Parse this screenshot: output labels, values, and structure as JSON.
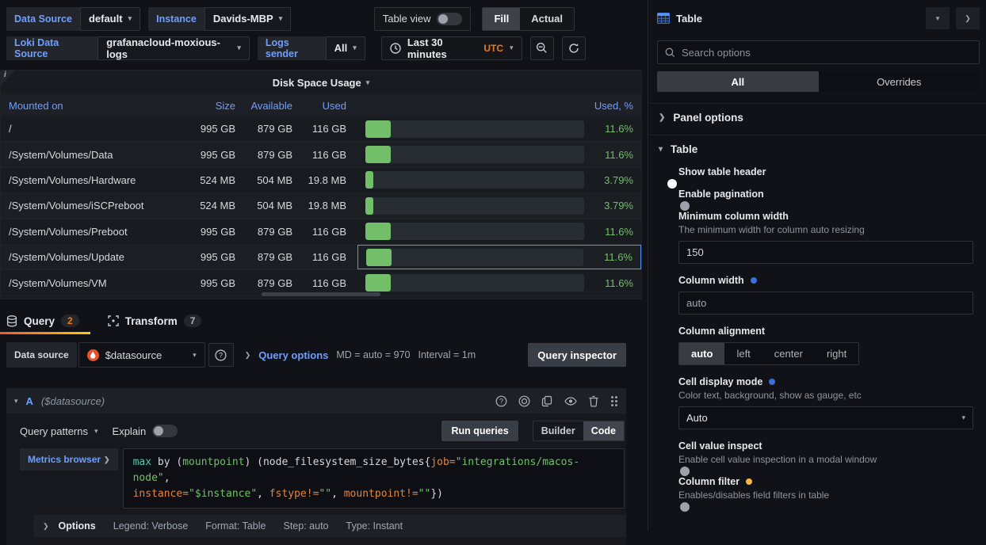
{
  "toolbar": {
    "data_source_label": "Data Source",
    "data_source_value": "default",
    "instance_label": "Instance",
    "instance_value": "Davids-MBP",
    "table_view_label": "Table view",
    "fill_label": "Fill",
    "actual_label": "Actual",
    "loki_label": "Loki Data Source",
    "loki_value": "grafanacloud-moxious-logs",
    "logs_sender_label": "Logs sender",
    "logs_sender_value": "All",
    "time_range": "Last 30 minutes",
    "timezone": "UTC"
  },
  "panel": {
    "title": "Disk Space Usage",
    "table": {
      "columns": {
        "mount": "Mounted on",
        "size": "Size",
        "available": "Available",
        "used": "Used",
        "used_pct": "Used, %"
      },
      "rows": [
        {
          "mount": "/",
          "size": "995 GB",
          "available": "879 GB",
          "used": "116 GB",
          "pct": "11.6%",
          "pct_value": 11.6,
          "focused": false
        },
        {
          "mount": "/System/Volumes/Data",
          "size": "995 GB",
          "available": "879 GB",
          "used": "116 GB",
          "pct": "11.6%",
          "pct_value": 11.6,
          "focused": false
        },
        {
          "mount": "/System/Volumes/Hardware",
          "size": "524 MB",
          "available": "504 MB",
          "used": "19.8 MB",
          "pct": "3.79%",
          "pct_value": 3.79,
          "focused": false
        },
        {
          "mount": "/System/Volumes/iSCPreboot",
          "size": "524 MB",
          "available": "504 MB",
          "used": "19.8 MB",
          "pct": "3.79%",
          "pct_value": 3.79,
          "focused": false
        },
        {
          "mount": "/System/Volumes/Preboot",
          "size": "995 GB",
          "available": "879 GB",
          "used": "116 GB",
          "pct": "11.6%",
          "pct_value": 11.6,
          "focused": false
        },
        {
          "mount": "/System/Volumes/Update",
          "size": "995 GB",
          "available": "879 GB",
          "used": "116 GB",
          "pct": "11.6%",
          "pct_value": 11.6,
          "focused": true
        },
        {
          "mount": "/System/Volumes/VM",
          "size": "995 GB",
          "available": "879 GB",
          "used": "116 GB",
          "pct": "11.6%",
          "pct_value": 11.6,
          "focused": false
        }
      ],
      "gauge_color": "#73bf69"
    }
  },
  "tabs": {
    "query_label": "Query",
    "query_count": "2",
    "transform_label": "Transform",
    "transform_count": "7"
  },
  "query_bar": {
    "data_source_label": "Data source",
    "data_source_value": "$datasource",
    "query_options_label": "Query options",
    "md_text": "MD = auto = 970",
    "interval_text": "Interval = 1m",
    "query_inspector_label": "Query inspector"
  },
  "query_editor": {
    "ref_id": "A",
    "ds_name": "($datasource)",
    "query_patterns_label": "Query patterns",
    "explain_label": "Explain",
    "run_queries_label": "Run queries",
    "builder_label": "Builder",
    "code_label": "Code",
    "metrics_browser_label": "Metrics browser",
    "code_lines": [
      [
        {
          "t": "max",
          "c": "kw"
        },
        {
          "t": " by (",
          "c": "pl"
        },
        {
          "t": "mountpoint",
          "c": "str"
        },
        {
          "t": ") (",
          "c": "pl"
        },
        {
          "t": "node_filesystem_size_bytes{",
          "c": "pl"
        },
        {
          "t": "job=",
          "c": "attr"
        },
        {
          "t": "\"integrations/macos-node\"",
          "c": "str"
        },
        {
          "t": ",",
          "c": "pl"
        }
      ],
      [
        {
          "t": "instance=",
          "c": "attr"
        },
        {
          "t": "\"$instance\"",
          "c": "str"
        },
        {
          "t": ", ",
          "c": "pl"
        },
        {
          "t": "fstype!=",
          "c": "attr"
        },
        {
          "t": "\"\"",
          "c": "str"
        },
        {
          "t": ", ",
          "c": "pl"
        },
        {
          "t": "mountpoint!=",
          "c": "attr"
        },
        {
          "t": "\"\"",
          "c": "str"
        },
        {
          "t": "})",
          "c": "pl"
        }
      ]
    ],
    "options_label": "Options",
    "options_summary": [
      "Legend: Verbose",
      "Format: Table",
      "Step: auto",
      "Type: Instant"
    ]
  },
  "sidebar": {
    "title": "Table",
    "search_placeholder": "Search options",
    "tab_all": "All",
    "tab_overrides": "Overrides",
    "panel_options_label": "Panel options",
    "table_section_label": "Table",
    "show_table_header": {
      "label": "Show table header",
      "on": true
    },
    "enable_pagination": {
      "label": "Enable pagination",
      "on": false
    },
    "min_col_width": {
      "label": "Minimum column width",
      "desc": "The minimum width for column auto resizing",
      "value": "150"
    },
    "column_width": {
      "label": "Column width",
      "value": "auto"
    },
    "column_alignment": {
      "label": "Column alignment",
      "options": [
        "auto",
        "left",
        "center",
        "right"
      ],
      "selected": "auto"
    },
    "cell_display_mode": {
      "label": "Cell display mode",
      "desc": "Color text, background, show as gauge, etc",
      "value": "Auto"
    },
    "cell_value_inspect": {
      "label": "Cell value inspect",
      "desc": "Enable cell value inspection in a modal window",
      "on": false
    },
    "column_filter": {
      "label": "Column filter",
      "desc": "Enables/disables field filters in table",
      "on": false
    }
  },
  "colors": {
    "accent_blue": "#3871dc",
    "link_blue": "#6e9fff",
    "green": "#73bf69",
    "orange": "#eb7b18"
  }
}
